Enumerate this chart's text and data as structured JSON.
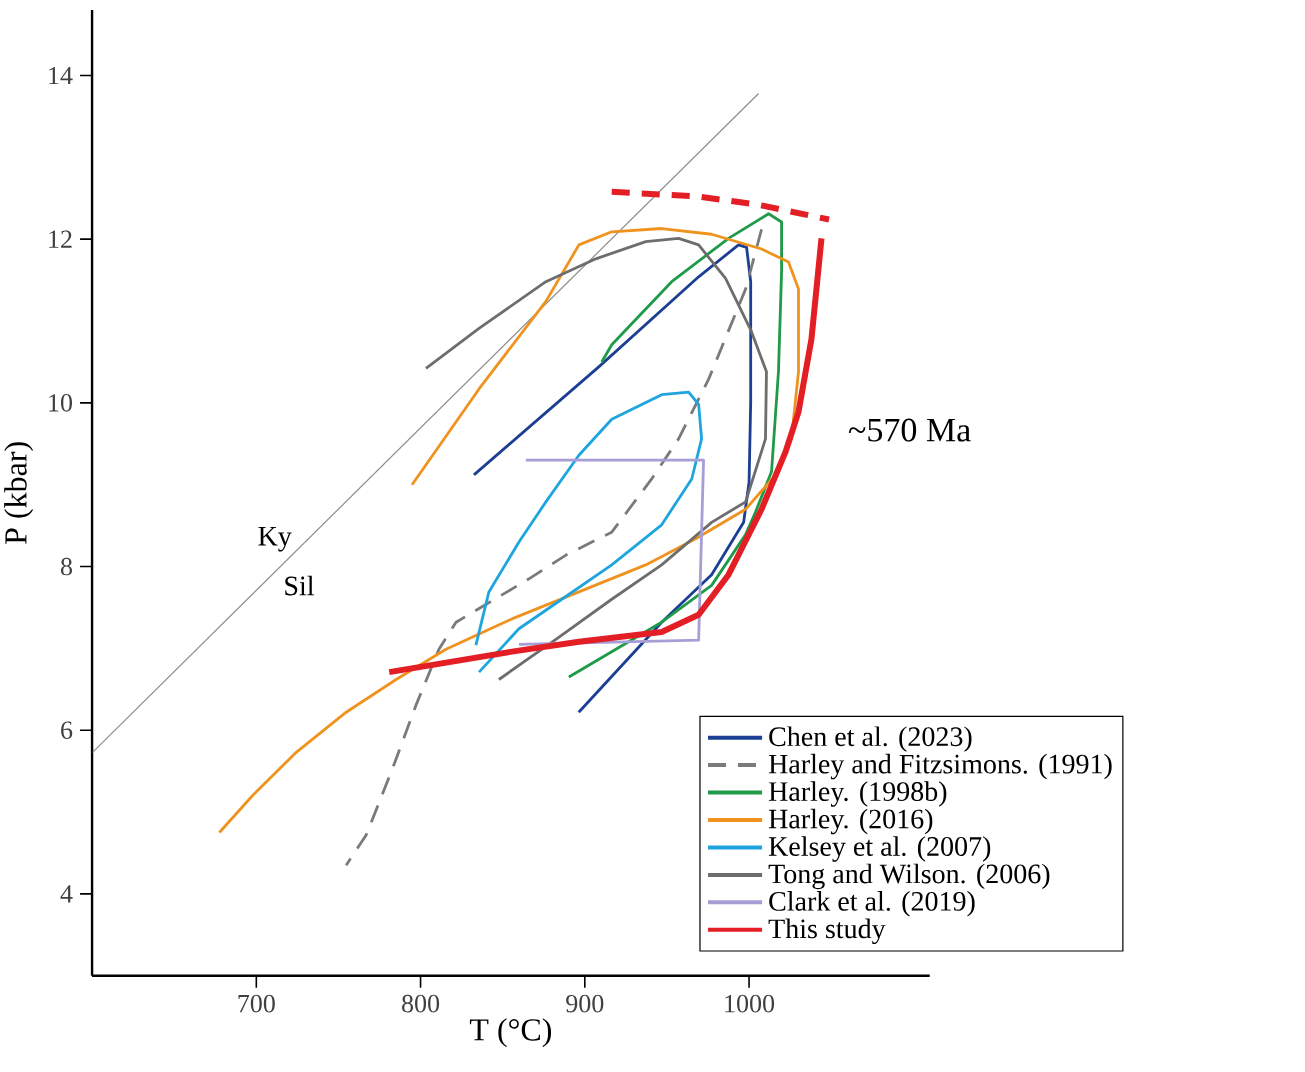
{
  "chart_data": {
    "type": "line",
    "xlabel": "T (°C)",
    "ylabel": "P (kbar)",
    "xlim": [
      600,
      1110
    ],
    "ylim": [
      3,
      14.8
    ],
    "xticks": [
      700,
      800,
      900,
      1000
    ],
    "yticks": [
      4,
      6,
      8,
      10,
      12,
      14
    ],
    "grid": false,
    "legend": "bottom right",
    "annotations": [
      "Ky",
      "Sil",
      "~570 Ma"
    ],
    "series": [
      {
        "color": "#8c8c8c",
        "x": [
          600.3,
          1005.8
        ],
        "values": [
          5.73,
          13.78
        ]
      },
      {
        "name": "Chen et al. (2023)",
        "color": "#1c3f94",
        "x": [
          832.5,
          908.5,
          969.3,
          993.6,
          998.5,
          1001,
          1001,
          1000,
          996.7,
          977.2,
          946.8,
          896.3
        ],
        "values": [
          9.12,
          10.44,
          11.54,
          11.93,
          11.9,
          11.48,
          10.01,
          9.03,
          8.54,
          7.9,
          7.32,
          6.22
        ]
      },
      {
        "name": "Harley and Fitzsimons. (1991)",
        "color": "#7a7a7a",
        "line_style": "dashed",
        "x": [
          1007.6,
          997.9,
          975.4,
          957.1,
          940.7,
          916.4,
          888.5,
          866,
          821.6,
          811.2,
          797.3,
          782.7,
          766.9,
          754.7
        ],
        "values": [
          12.12,
          11.39,
          10.29,
          9.56,
          9.07,
          8.42,
          8.14,
          7.85,
          7.32,
          6.99,
          6.31,
          5.52,
          4.72,
          4.35
        ]
      },
      {
        "name": "Harley. (1998b)",
        "color": "#1e9a48",
        "x": [
          910.3,
          916.4,
          952.9,
          987.5,
          1011.9,
          1019.8,
          1019.8,
          1017.9,
          1013.7,
          1004,
          997.9,
          977.2,
          946.8,
          890.3
        ],
        "values": [
          10.5,
          10.71,
          11.48,
          12.01,
          12.31,
          12.21,
          11.6,
          10.38,
          9.16,
          8.67,
          8.39,
          7.77,
          7.32,
          6.65
        ]
      },
      {
        "name": "Harley. (2016)",
        "color": "#f0931e",
        "x": [
          794.8,
          835.6,
          876.3,
          896.4,
          916.4,
          946.8,
          977.2,
          1007.6,
          1024,
          1030.1,
          1030.1,
          1025.8,
          1014.9,
          997.9,
          967.5,
          937.1,
          896.4,
          855.6,
          815.5,
          785.1,
          754.7,
          724.3,
          697.6,
          677.5
        ],
        "values": [
          9.0,
          10.17,
          11.24,
          11.93,
          12.09,
          12.13,
          12.06,
          11.88,
          11.72,
          11.39,
          10.38,
          9.56,
          9.09,
          8.7,
          8.34,
          8.02,
          7.69,
          7.36,
          6.99,
          6.62,
          6.22,
          5.73,
          5.2,
          4.75
        ]
      },
      {
        "name": "Kelsey et al. (2007)",
        "color": "#1ea5e0",
        "x": [
          833.7,
          841.6,
          859.9,
          876.3,
          896.4,
          916.4,
          946.8,
          963.2,
          969.3,
          971.1,
          965.1,
          946.8,
          916.4,
          886,
          859.9,
          835.6
        ],
        "values": [
          7.04,
          7.69,
          8.3,
          8.79,
          9.36,
          9.8,
          10.1,
          10.13,
          9.98,
          9.56,
          9.07,
          8.51,
          8.02,
          7.6,
          7.24,
          6.71
        ]
      },
      {
        "name": "Tong and Wilson. (2006)",
        "color": "#6d6d6d",
        "x": [
          803.3,
          835.6,
          876.3,
          906.7,
          937.1,
          957.1,
          969.3,
          985.7,
          1001.5,
          1010.6,
          1010,
          997.9,
          977.2,
          946.8,
          916.4,
          882.4,
          847.7
        ],
        "values": [
          10.42,
          10.91,
          11.48,
          11.76,
          11.97,
          12.01,
          11.93,
          11.52,
          10.87,
          10.38,
          9.56,
          8.79,
          8.54,
          8.02,
          7.6,
          7.11,
          6.62
        ]
      },
      {
        "name": "Clark et al. (2019)",
        "color": "#a79ed6",
        "x": [
          864.1,
          972.3,
          969.3,
          859.9
        ],
        "values": [
          9.3,
          9.3,
          7.1,
          7.05
        ]
      },
      {
        "name": "This study",
        "color": "#e31e24",
        "x": [
          1044.1,
          1038,
          1030.1,
          1022.2,
          1007.6,
          987.5,
          969.3,
          946.8,
          896.4,
          855.6,
          780.9
        ],
        "values": [
          12.01,
          10.78,
          9.89,
          9.4,
          8.7,
          7.9,
          7.41,
          7.2,
          7.08,
          6.96,
          6.71
        ]
      },
      {
        "color": "#e31e24",
        "line_style": "dashed",
        "x": [
          916.4,
          969.3,
          1005.8,
          1048.7
        ],
        "values": [
          12.58,
          12.52,
          12.42,
          12.24
        ]
      }
    ]
  }
}
